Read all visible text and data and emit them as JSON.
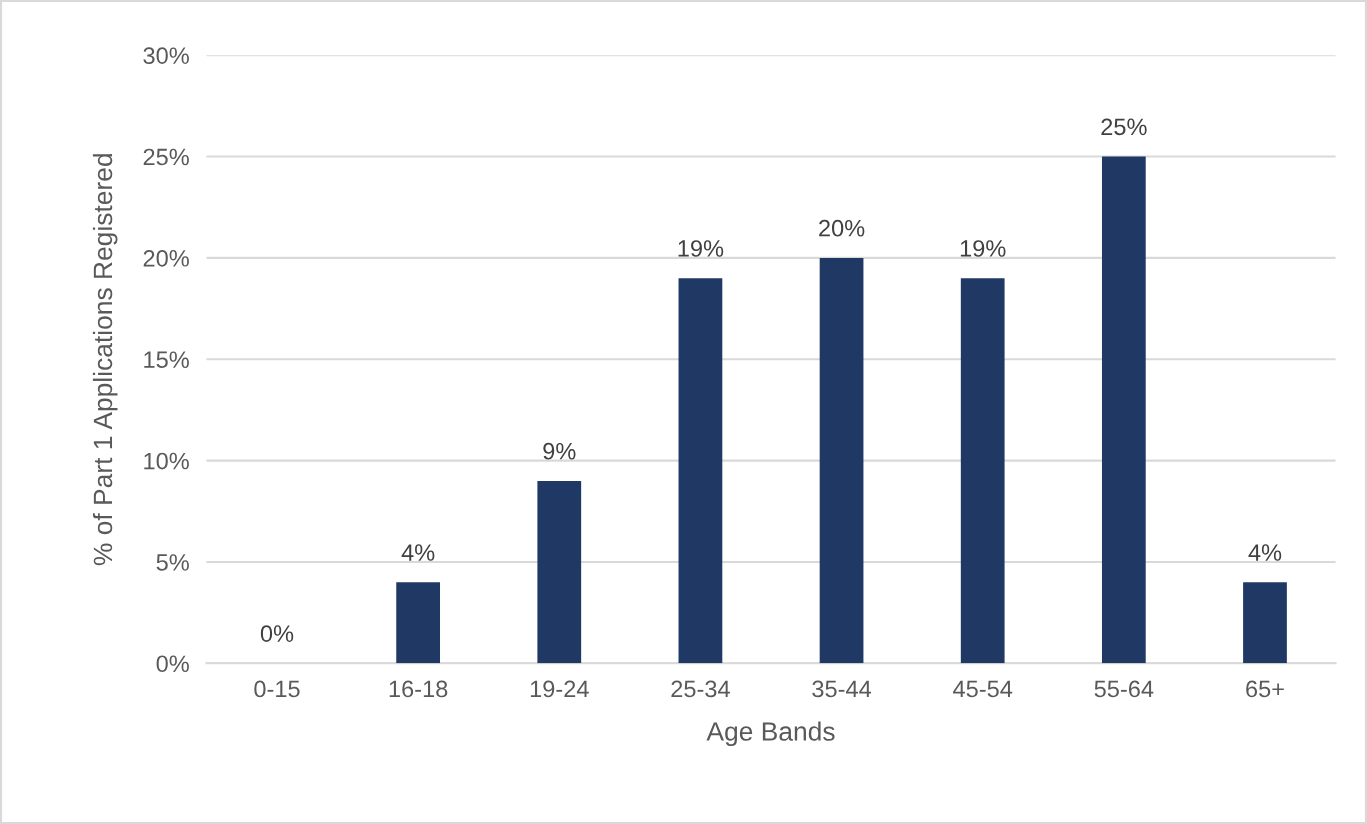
{
  "chart_data": {
    "type": "bar",
    "xlabel": "Age Bands",
    "ylabel": "% of Part 1 Applications Registered",
    "categories": [
      "0-15",
      "16-18",
      "19-24",
      "25-34",
      "35-44",
      "45-54",
      "55-64",
      "65+"
    ],
    "values": [
      0,
      4,
      9,
      19,
      20,
      19,
      25,
      4
    ],
    "value_labels": [
      "0%",
      "4%",
      "9%",
      "19%",
      "20%",
      "19%",
      "25%",
      "4%"
    ],
    "color": "#1f3864",
    "ylim": [
      0,
      30
    ],
    "yticks": [
      {
        "value": 0,
        "label": "0%"
      },
      {
        "value": 5,
        "label": "5%"
      },
      {
        "value": 10,
        "label": "10%"
      },
      {
        "value": 15,
        "label": "15%"
      },
      {
        "value": 20,
        "label": "20%"
      },
      {
        "value": 25,
        "label": "25%"
      },
      {
        "value": 30,
        "label": "30%"
      }
    ],
    "grid": "y"
  }
}
